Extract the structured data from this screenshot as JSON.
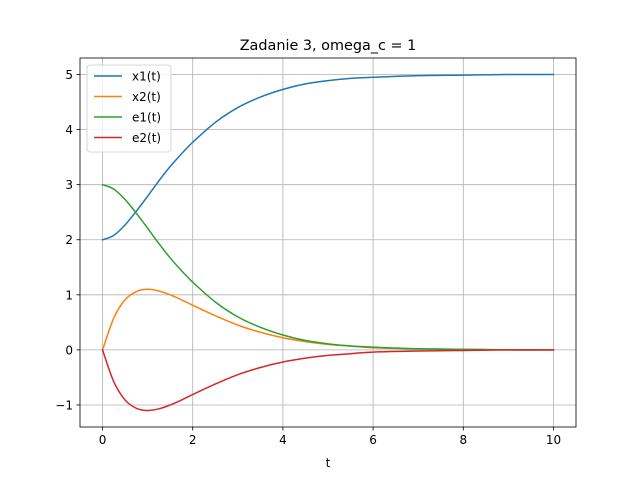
{
  "chart_data": {
    "type": "line",
    "title": "Zadanie 3, omega_c = 1",
    "xlabel": "t",
    "ylabel": "",
    "xlim": [
      -0.5,
      10.5
    ],
    "ylim": [
      -1.4,
      5.3
    ],
    "xticks": [
      0,
      2,
      4,
      6,
      8,
      10
    ],
    "yticks": [
      -1,
      0,
      1,
      2,
      3,
      4,
      5
    ],
    "xtick_labels": [
      "0",
      "2",
      "4",
      "6",
      "8",
      "10"
    ],
    "ytick_labels": [
      "−1",
      "0",
      "1",
      "2",
      "3",
      "4",
      "5"
    ],
    "grid": true,
    "legend_position": "upper-left",
    "x": [
      0,
      0.25,
      0.5,
      0.75,
      1,
      1.25,
      1.5,
      1.75,
      2,
      2.5,
      3,
      3.5,
      4,
      4.5,
      5,
      5.5,
      6,
      7,
      8,
      9,
      10
    ],
    "series": [
      {
        "name": "x1(t)",
        "color": "#1f77b4",
        "values": [
          2.0,
          2.08,
          2.27,
          2.52,
          2.79,
          3.07,
          3.33,
          3.56,
          3.77,
          4.13,
          4.4,
          4.59,
          4.73,
          4.83,
          4.89,
          4.93,
          4.95,
          4.98,
          4.99,
          5.0,
          5.0
        ]
      },
      {
        "name": "x2(t)",
        "color": "#ff7f0e",
        "values": [
          0.0,
          0.58,
          0.91,
          1.06,
          1.1,
          1.07,
          1.0,
          0.91,
          0.81,
          0.62,
          0.45,
          0.32,
          0.22,
          0.15,
          0.1,
          0.07,
          0.04,
          0.02,
          0.01,
          0.0,
          0.0
        ]
      },
      {
        "name": "e1(t)",
        "color": "#2ca02c",
        "values": [
          3.0,
          2.92,
          2.73,
          2.48,
          2.21,
          1.93,
          1.67,
          1.44,
          1.23,
          0.87,
          0.6,
          0.41,
          0.27,
          0.17,
          0.11,
          0.07,
          0.05,
          0.02,
          0.01,
          0.0,
          0.0
        ]
      },
      {
        "name": "e2(t)",
        "color": "#d62728",
        "values": [
          0.0,
          -0.58,
          -0.91,
          -1.06,
          -1.1,
          -1.07,
          -1.0,
          -0.91,
          -0.81,
          -0.62,
          -0.45,
          -0.32,
          -0.22,
          -0.15,
          -0.1,
          -0.07,
          -0.04,
          -0.02,
          -0.01,
          0.0,
          0.0
        ]
      }
    ]
  }
}
